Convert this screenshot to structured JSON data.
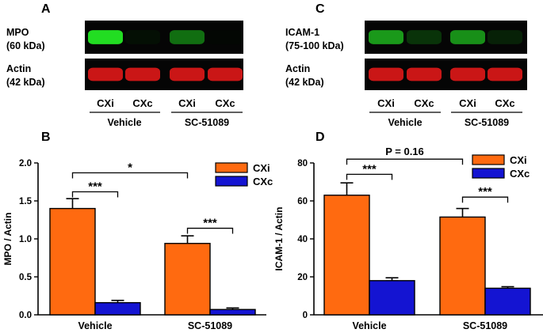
{
  "panels": {
    "A": {
      "letter": "A",
      "rows": [
        {
          "label_line1": "MPO",
          "label_line2": "(60 kDa)",
          "color": "#22dd22",
          "intensities": [
            1.0,
            0.12,
            0.55,
            0.06
          ]
        },
        {
          "label_line1": "Actin",
          "label_line2": "(42 kDa)",
          "color": "#e01818",
          "intensities": [
            0.9,
            0.9,
            0.9,
            0.9
          ]
        }
      ],
      "lanes": [
        "CXi",
        "CXc",
        "CXi",
        "CXc"
      ],
      "groups": [
        "Vehicle",
        "SC-51089"
      ]
    },
    "C": {
      "letter": "C",
      "rows": [
        {
          "label_line1": "ICAM-1",
          "label_line2": "(75-100 kDa)",
          "color": "#22cc22",
          "intensities": [
            0.75,
            0.35,
            0.7,
            0.25
          ]
        },
        {
          "label_line1": "Actin",
          "label_line2": "(42 kDa)",
          "color": "#e01818",
          "intensities": [
            0.9,
            0.9,
            0.9,
            0.9
          ]
        }
      ],
      "lanes": [
        "CXi",
        "CXc",
        "CXi",
        "CXc"
      ],
      "groups": [
        "Vehicle",
        "SC-51089"
      ]
    },
    "B": {
      "letter": "B"
    },
    "D": {
      "letter": "D"
    }
  },
  "colors": {
    "cxi": "#ff6a10",
    "cxc": "#1414d2"
  },
  "chart_data": [
    {
      "panel": "B",
      "type": "bar",
      "categories": [
        "Vehicle",
        "SC-51089"
      ],
      "series": [
        {
          "name": "CXi",
          "values": [
            1.4,
            0.94
          ],
          "errors": [
            0.13,
            0.1
          ]
        },
        {
          "name": "CXc",
          "values": [
            0.16,
            0.07
          ],
          "errors": [
            0.03,
            0.02
          ]
        }
      ],
      "ylabel": "MPO / Actin",
      "ylim": [
        0,
        2.0
      ],
      "yticks": [
        "0.0",
        "0.5",
        "1.0",
        "1.5",
        "2.0"
      ],
      "ytick_values": [
        0,
        0.5,
        1.0,
        1.5,
        2.0
      ],
      "legend_position": "top-right",
      "annotations": [
        {
          "text": "***",
          "from": "Vehicle-CXi",
          "to": "Vehicle-CXc",
          "level": 1.62
        },
        {
          "text": "*",
          "from": "Vehicle-CXi",
          "to": "SC-51089-CXi",
          "level": 1.87
        },
        {
          "text": "***",
          "from": "SC-51089-CXi",
          "to": "SC-51089-CXc",
          "level": 1.14
        }
      ]
    },
    {
      "panel": "D",
      "type": "bar",
      "categories": [
        "Vehicle",
        "SC-51089"
      ],
      "series": [
        {
          "name": "CXi",
          "values": [
            63,
            51.5
          ],
          "errors": [
            6.5,
            4.5
          ]
        },
        {
          "name": "CXc",
          "values": [
            18,
            14
          ],
          "errors": [
            1.5,
            0.8
          ]
        }
      ],
      "ylabel": "ICAM-1 / Actin",
      "ylim": [
        0,
        80
      ],
      "yticks": [
        "0",
        "20",
        "40",
        "60",
        "80"
      ],
      "ytick_values": [
        0,
        20,
        40,
        60,
        80
      ],
      "legend_position": "top-right",
      "annotations": [
        {
          "text": "***",
          "from": "Vehicle-CXi",
          "to": "Vehicle-CXc",
          "level": 74
        },
        {
          "text": "P = 0.16",
          "from": "Vehicle-CXi",
          "to": "SC-51089-CXi",
          "level": 82
        },
        {
          "text": "***",
          "from": "SC-51089-CXi",
          "to": "SC-51089-CXc",
          "level": 62
        }
      ]
    }
  ]
}
